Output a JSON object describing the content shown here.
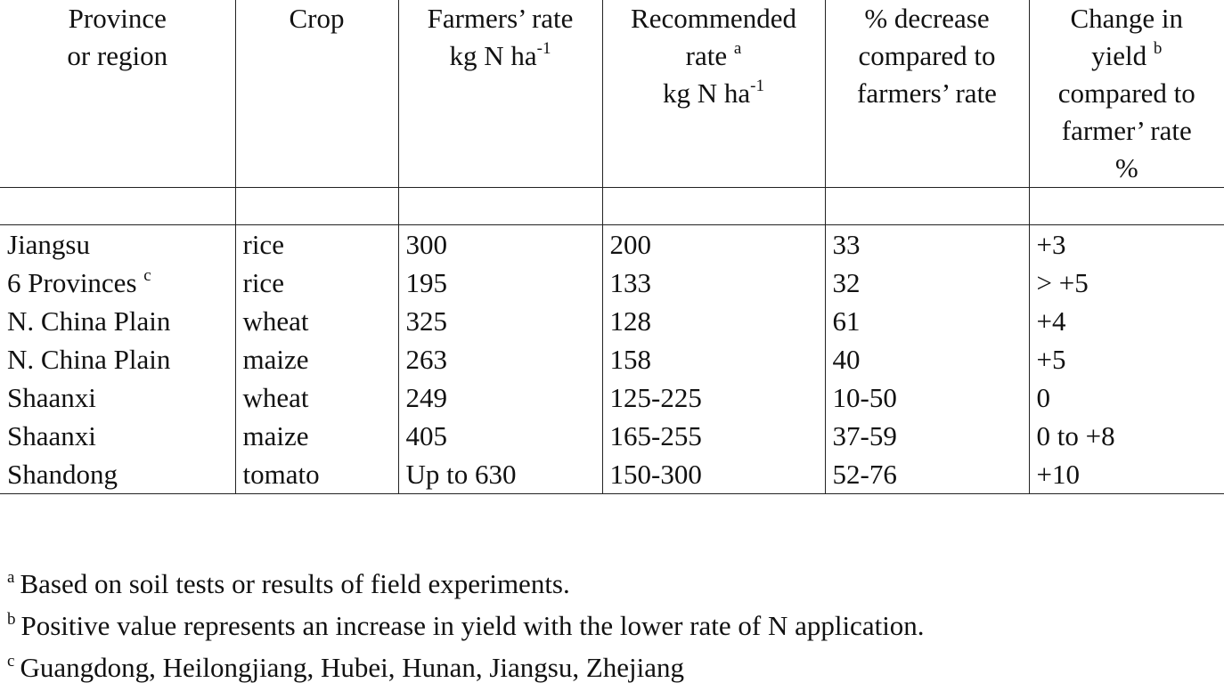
{
  "table": {
    "headers": {
      "province": [
        "Province",
        "or region"
      ],
      "crop": [
        "Crop"
      ],
      "farmers_rate": [
        "Farmers’ rate",
        "kg N ha",
        "-1"
      ],
      "recommended_rate": [
        "Recommended",
        "rate ",
        "a",
        "kg N ha",
        "-1"
      ],
      "decrease": [
        "% decrease",
        "compared to",
        "farmers’ rate"
      ],
      "change_yield": [
        "Change in",
        "yield ",
        "b",
        "compared to",
        "farmer’ rate",
        "%"
      ]
    },
    "rows": [
      {
        "province": "Jiangsu",
        "province_sup": "",
        "crop": "rice",
        "farmers_rate": "300",
        "recommended": "200",
        "decrease": "33",
        "change": "+3"
      },
      {
        "province": "6 Provinces ",
        "province_sup": "c",
        "crop": "rice",
        "farmers_rate": "195",
        "recommended": "133",
        "decrease": "32",
        "change": "> +5"
      },
      {
        "province": "N. China Plain",
        "province_sup": "",
        "crop": "wheat",
        "farmers_rate": "325",
        "recommended": "128",
        "decrease": "61",
        "change": "+4"
      },
      {
        "province": "N. China Plain",
        "province_sup": "",
        "crop": "maize",
        "farmers_rate": "263",
        "recommended": "158",
        "decrease": "40",
        "change": "+5"
      },
      {
        "province": "Shaanxi",
        "province_sup": "",
        "crop": "wheat",
        "farmers_rate": "249",
        "recommended": "125-225",
        "decrease": "10-50",
        "change": "0"
      },
      {
        "province": "Shaanxi",
        "province_sup": "",
        "crop": "maize",
        "farmers_rate": "405",
        "recommended": "165-255",
        "decrease": "37-59",
        "change": "0 to +8"
      },
      {
        "province": "Shandong",
        "province_sup": "",
        "crop": "tomato",
        "farmers_rate": "Up to 630",
        "recommended": "150-300",
        "decrease": "52-76",
        "change": "+10"
      }
    ]
  },
  "footnotes": [
    {
      "mark": "a",
      "text": "Based on soil tests or results of field experiments."
    },
    {
      "mark": "b",
      "text": "Positive value represents an increase in yield with the lower rate of N application."
    },
    {
      "mark": "c",
      "text": "Guangdong, Heilongjiang, Hubei, Hunan, Jiangsu, Zhejiang"
    }
  ]
}
